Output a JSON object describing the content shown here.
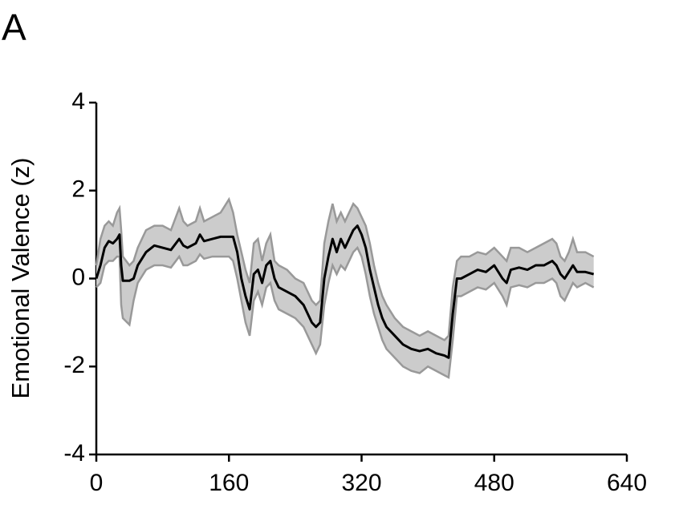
{
  "panel_label": "A",
  "chart_data": {
    "type": "line",
    "y_label": "Emotional Valence (z)",
    "x": [
      0,
      5,
      10,
      15,
      20,
      25,
      28,
      30,
      32,
      40,
      45,
      50,
      60,
      70,
      80,
      90,
      100,
      105,
      110,
      120,
      125,
      130,
      140,
      150,
      160,
      165,
      170,
      175,
      180,
      185,
      190,
      195,
      200,
      205,
      210,
      215,
      220,
      230,
      240,
      250,
      260,
      265,
      270,
      275,
      280,
      285,
      290,
      295,
      300,
      305,
      310,
      315,
      320,
      325,
      330,
      335,
      340,
      345,
      350,
      360,
      370,
      380,
      390,
      400,
      410,
      420,
      425,
      430,
      435,
      440,
      450,
      460,
      470,
      480,
      490,
      495,
      500,
      510,
      520,
      530,
      540,
      550,
      555,
      560,
      565,
      570,
      575,
      580,
      590,
      600
    ],
    "series": [
      {
        "color": "#000000",
        "values": [
          0,
          0.3,
          0.7,
          0.85,
          0.8,
          0.9,
          1.0,
          0.3,
          -0.05,
          -0.05,
          0.0,
          0.3,
          0.6,
          0.75,
          0.7,
          0.65,
          0.9,
          0.75,
          0.7,
          0.8,
          1.0,
          0.85,
          0.9,
          0.95,
          0.95,
          0.95,
          0.6,
          0.0,
          -0.4,
          -0.7,
          0.1,
          0.2,
          -0.1,
          0.3,
          0.4,
          0.0,
          -0.2,
          -0.3,
          -0.4,
          -0.6,
          -1.0,
          -1.1,
          -1.0,
          0.0,
          0.5,
          0.9,
          0.6,
          0.9,
          0.7,
          0.9,
          1.1,
          1.2,
          1.0,
          0.7,
          0.2,
          -0.2,
          -0.6,
          -0.9,
          -1.1,
          -1.3,
          -1.5,
          -1.6,
          -1.65,
          -1.6,
          -1.7,
          -1.75,
          -1.8,
          -0.8,
          0.0,
          0.0,
          0.1,
          0.2,
          0.15,
          0.3,
          0.0,
          -0.1,
          0.2,
          0.25,
          0.2,
          0.3,
          0.3,
          0.4,
          0.3,
          0.1,
          0.0,
          0.15,
          0.3,
          0.15,
          0.15,
          0.1
        ]
      }
    ],
    "band": {
      "color": "#cccccc",
      "edge_color": "#999999",
      "upper": [
        0.3,
        0.9,
        1.2,
        1.3,
        1.2,
        1.5,
        1.6,
        1.1,
        0.5,
        0.3,
        0.4,
        0.7,
        1.1,
        1.2,
        1.2,
        1.1,
        1.6,
        1.3,
        1.2,
        1.3,
        1.6,
        1.3,
        1.4,
        1.5,
        1.8,
        1.5,
        1.0,
        0.6,
        0.2,
        -0.1,
        0.8,
        0.9,
        0.4,
        0.8,
        1.0,
        0.4,
        0.3,
        0.2,
        0.0,
        -0.1,
        -0.5,
        -0.6,
        -0.5,
        0.8,
        1.3,
        1.7,
        1.3,
        1.5,
        1.3,
        1.5,
        1.7,
        1.6,
        1.4,
        1.2,
        0.8,
        0.3,
        -0.1,
        -0.4,
        -0.6,
        -0.9,
        -1.1,
        -1.2,
        -1.3,
        -1.2,
        -1.3,
        -1.4,
        -1.3,
        -0.2,
        0.4,
        0.5,
        0.5,
        0.6,
        0.55,
        0.7,
        0.5,
        0.4,
        0.7,
        0.7,
        0.6,
        0.7,
        0.8,
        0.9,
        0.8,
        0.5,
        0.4,
        0.6,
        0.9,
        0.6,
        0.6,
        0.5
      ],
      "lower": [
        -0.2,
        -0.1,
        0.3,
        0.4,
        0.4,
        0.5,
        0.5,
        -0.6,
        -0.9,
        -1.05,
        -0.5,
        -0.1,
        0.2,
        0.3,
        0.3,
        0.25,
        0.5,
        0.3,
        0.3,
        0.4,
        0.55,
        0.45,
        0.5,
        0.5,
        0.5,
        0.4,
        0.0,
        -0.5,
        -1.0,
        -1.3,
        -0.5,
        -0.3,
        -0.6,
        -0.2,
        -0.1,
        -0.5,
        -0.7,
        -0.8,
        -0.9,
        -1.1,
        -1.5,
        -1.7,
        -1.5,
        -0.6,
        -0.1,
        0.3,
        0.1,
        0.3,
        0.2,
        0.4,
        0.6,
        0.7,
        0.5,
        0.1,
        -0.4,
        -0.8,
        -1.1,
        -1.4,
        -1.6,
        -1.8,
        -2.0,
        -2.1,
        -2.15,
        -2.0,
        -2.1,
        -2.2,
        -2.25,
        -1.4,
        -0.4,
        -0.4,
        -0.3,
        -0.2,
        -0.25,
        -0.1,
        -0.4,
        -0.6,
        -0.2,
        -0.15,
        -0.2,
        -0.1,
        -0.1,
        0.0,
        -0.1,
        -0.4,
        -0.5,
        -0.3,
        -0.1,
        -0.2,
        -0.1,
        -0.2
      ]
    },
    "xlim": [
      0,
      640
    ],
    "xticks": [
      0,
      160,
      320,
      480,
      640
    ],
    "ylim": [
      -4,
      4
    ],
    "yticks": [
      -4,
      -2,
      0,
      2,
      4
    ]
  }
}
